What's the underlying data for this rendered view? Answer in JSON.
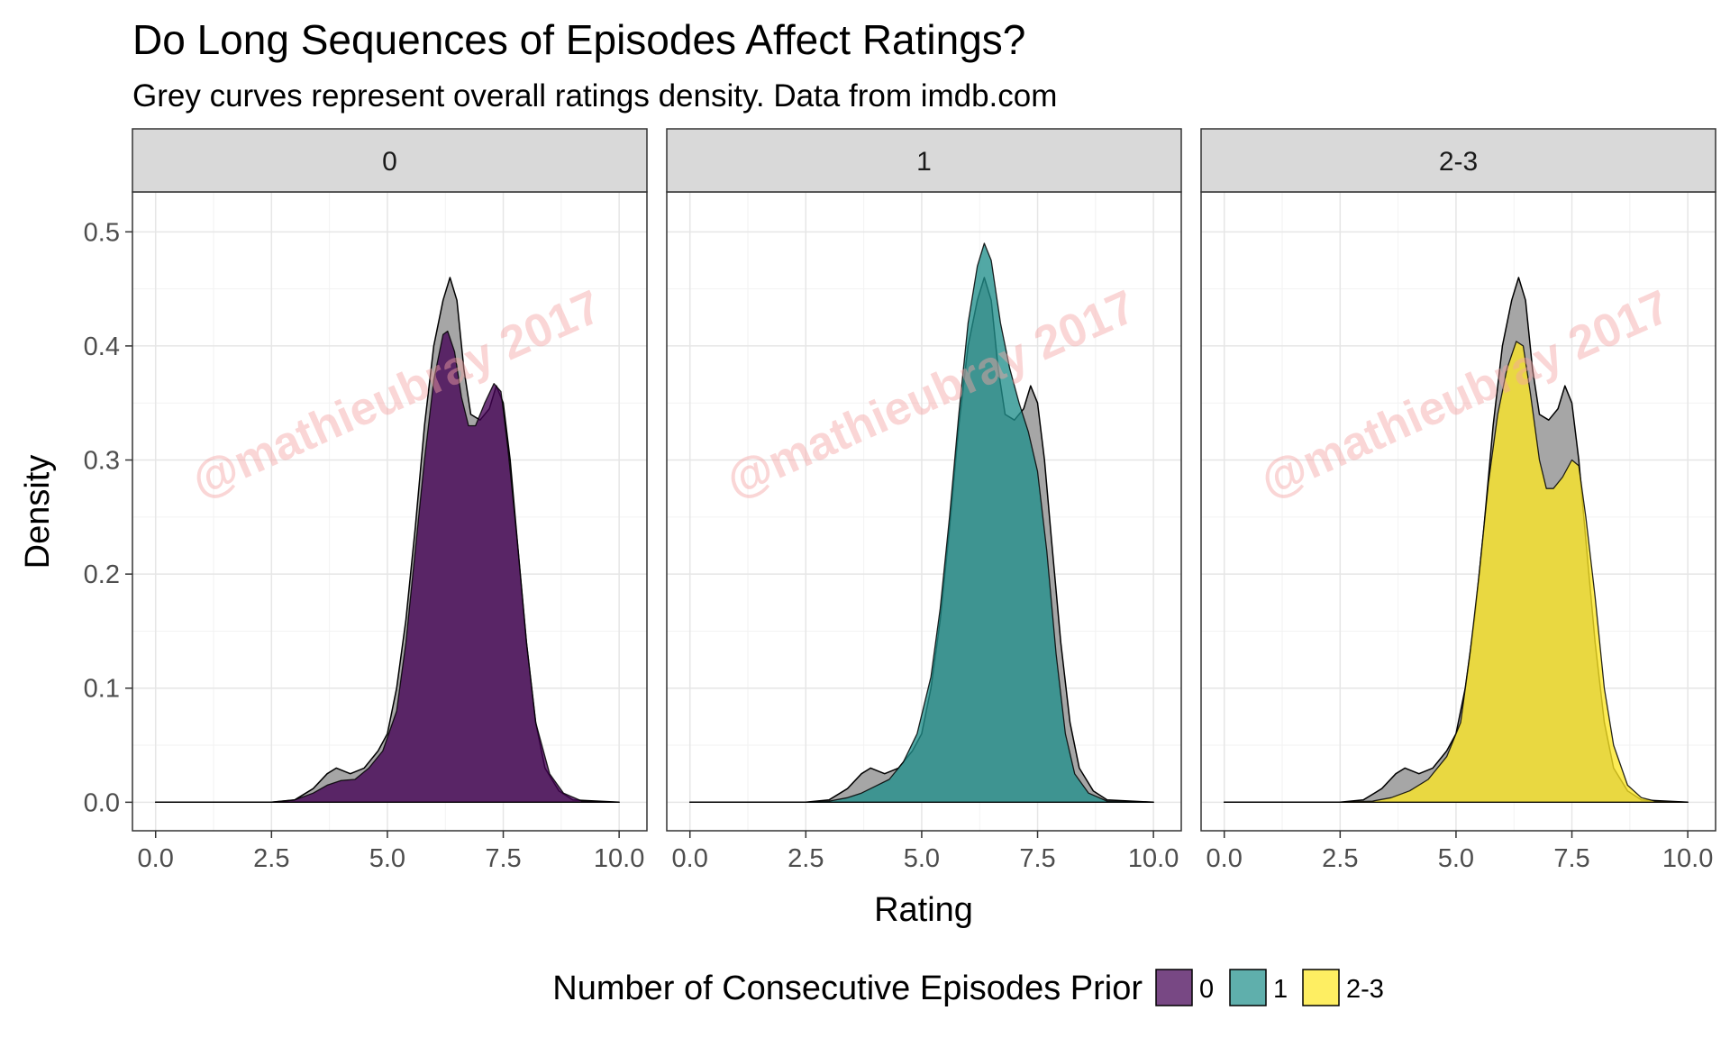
{
  "chart_data": {
    "type": "area",
    "title": "Do Long Sequences of Episodes Affect Ratings?",
    "subtitle": "Grey curves represent overall ratings density. Data from imdb.com",
    "xlabel": "Rating",
    "ylabel": "Density",
    "xlim": [
      -0.5,
      10.6
    ],
    "ylim": [
      -0.025,
      0.535
    ],
    "x_ticks": [
      0.0,
      2.5,
      5.0,
      7.5,
      10.0
    ],
    "x_tick_labels": [
      "0.0",
      "2.5",
      "5.0",
      "7.5",
      "10.0"
    ],
    "y_ticks": [
      0.0,
      0.1,
      0.2,
      0.3,
      0.4,
      0.5
    ],
    "y_tick_labels": [
      "0.0",
      "0.1",
      "0.2",
      "0.3",
      "0.4",
      "0.5"
    ],
    "grid": true,
    "legend": {
      "title": "Number of Consecutive Episodes Prior",
      "position": "bottom",
      "items": [
        {
          "label": "0",
          "color": "#440154"
        },
        {
          "label": "1",
          "color": "#21908C"
        },
        {
          "label": "2-3",
          "color": "#FDE725"
        }
      ]
    },
    "watermark": "@mathieubray 2017",
    "overall": {
      "color": "#a6a6a6",
      "points": [
        [
          0,
          0
        ],
        [
          2.5,
          0
        ],
        [
          3.0,
          0.002
        ],
        [
          3.4,
          0.012
        ],
        [
          3.7,
          0.025
        ],
        [
          3.9,
          0.03
        ],
        [
          4.2,
          0.025
        ],
        [
          4.5,
          0.03
        ],
        [
          4.8,
          0.045
        ],
        [
          5.0,
          0.06
        ],
        [
          5.2,
          0.1
        ],
        [
          5.4,
          0.16
        ],
        [
          5.6,
          0.24
        ],
        [
          5.8,
          0.33
        ],
        [
          6.0,
          0.4
        ],
        [
          6.2,
          0.44
        ],
        [
          6.35,
          0.46
        ],
        [
          6.5,
          0.44
        ],
        [
          6.65,
          0.38
        ],
        [
          6.8,
          0.34
        ],
        [
          7.0,
          0.335
        ],
        [
          7.2,
          0.345
        ],
        [
          7.35,
          0.365
        ],
        [
          7.5,
          0.35
        ],
        [
          7.65,
          0.3
        ],
        [
          7.8,
          0.23
        ],
        [
          8.0,
          0.14
        ],
        [
          8.2,
          0.07
        ],
        [
          8.4,
          0.03
        ],
        [
          8.7,
          0.01
        ],
        [
          9.0,
          0.002
        ],
        [
          10,
          0
        ]
      ]
    },
    "panels": [
      {
        "strip": "0",
        "color": "#440154",
        "points": [
          [
            0,
            0
          ],
          [
            2.5,
            0
          ],
          [
            3.0,
            0.002
          ],
          [
            3.4,
            0.008
          ],
          [
            3.7,
            0.015
          ],
          [
            4.0,
            0.019
          ],
          [
            4.3,
            0.02
          ],
          [
            4.6,
            0.03
          ],
          [
            4.9,
            0.045
          ],
          [
            5.2,
            0.08
          ],
          [
            5.4,
            0.14
          ],
          [
            5.6,
            0.22
          ],
          [
            5.8,
            0.3
          ],
          [
            6.0,
            0.37
          ],
          [
            6.2,
            0.41
          ],
          [
            6.3,
            0.413
          ],
          [
            6.45,
            0.395
          ],
          [
            6.6,
            0.355
          ],
          [
            6.75,
            0.33
          ],
          [
            6.9,
            0.33
          ],
          [
            7.1,
            0.35
          ],
          [
            7.3,
            0.367
          ],
          [
            7.45,
            0.36
          ],
          [
            7.6,
            0.31
          ],
          [
            7.8,
            0.23
          ],
          [
            8.0,
            0.14
          ],
          [
            8.2,
            0.07
          ],
          [
            8.5,
            0.025
          ],
          [
            8.8,
            0.008
          ],
          [
            9.2,
            0.001
          ],
          [
            10,
            0
          ]
        ]
      },
      {
        "strip": "1",
        "color": "#21908C",
        "points": [
          [
            0,
            0
          ],
          [
            2.5,
            0
          ],
          [
            3.0,
            0.001
          ],
          [
            3.4,
            0.004
          ],
          [
            3.7,
            0.008
          ],
          [
            4.0,
            0.014
          ],
          [
            4.3,
            0.02
          ],
          [
            4.6,
            0.035
          ],
          [
            4.9,
            0.06
          ],
          [
            5.2,
            0.11
          ],
          [
            5.4,
            0.17
          ],
          [
            5.6,
            0.25
          ],
          [
            5.8,
            0.34
          ],
          [
            6.0,
            0.42
          ],
          [
            6.2,
            0.47
          ],
          [
            6.35,
            0.49
          ],
          [
            6.5,
            0.475
          ],
          [
            6.7,
            0.42
          ],
          [
            6.9,
            0.38
          ],
          [
            7.1,
            0.35
          ],
          [
            7.3,
            0.325
          ],
          [
            7.5,
            0.29
          ],
          [
            7.7,
            0.22
          ],
          [
            7.9,
            0.13
          ],
          [
            8.1,
            0.06
          ],
          [
            8.3,
            0.025
          ],
          [
            8.6,
            0.008
          ],
          [
            9.0,
            0.001
          ],
          [
            10,
            0
          ]
        ]
      },
      {
        "strip": "2-3",
        "color": "#FDE725",
        "points": [
          [
            0,
            0
          ],
          [
            2.5,
            0
          ],
          [
            3.2,
            0.001
          ],
          [
            3.6,
            0.004
          ],
          [
            4.0,
            0.01
          ],
          [
            4.4,
            0.02
          ],
          [
            4.8,
            0.04
          ],
          [
            5.1,
            0.07
          ],
          [
            5.3,
            0.13
          ],
          [
            5.5,
            0.2
          ],
          [
            5.7,
            0.28
          ],
          [
            5.9,
            0.34
          ],
          [
            6.1,
            0.38
          ],
          [
            6.3,
            0.404
          ],
          [
            6.45,
            0.4
          ],
          [
            6.6,
            0.36
          ],
          [
            6.8,
            0.3
          ],
          [
            6.95,
            0.275
          ],
          [
            7.1,
            0.275
          ],
          [
            7.3,
            0.285
          ],
          [
            7.5,
            0.3
          ],
          [
            7.65,
            0.295
          ],
          [
            7.8,
            0.25
          ],
          [
            8.0,
            0.18
          ],
          [
            8.2,
            0.1
          ],
          [
            8.4,
            0.05
          ],
          [
            8.7,
            0.015
          ],
          [
            9.0,
            0.004
          ],
          [
            9.3,
            0.001
          ],
          [
            10,
            0
          ]
        ]
      }
    ]
  }
}
